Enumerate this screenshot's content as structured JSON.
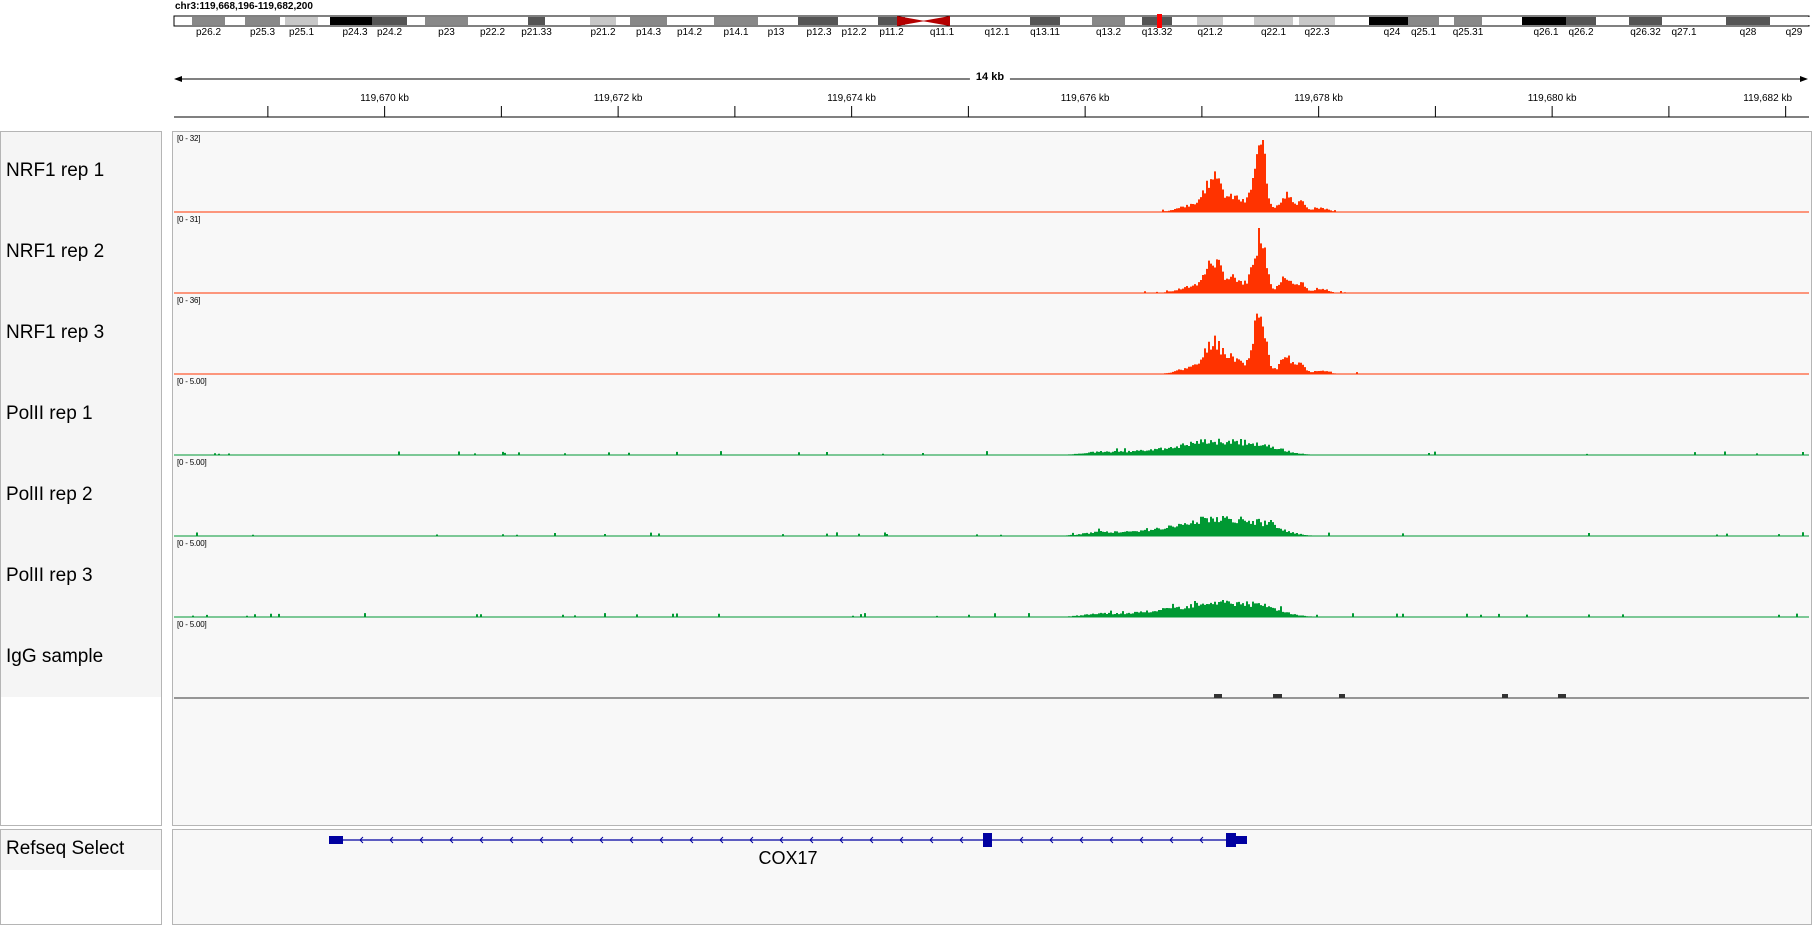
{
  "locus": "chr3:119,668,196-119,682,200",
  "ideogram": {
    "bands": [
      {
        "label": "p26.2",
        "x": 200,
        "x2": 215,
        "color": "#888888"
      },
      {
        "label": "p25.3",
        "x": 253,
        "x2": 270,
        "color": "#888888"
      },
      {
        "label": "p25.1",
        "x": 293,
        "x2": 308,
        "color": "#c8c8c8"
      },
      {
        "label": "p24.3",
        "x": 338,
        "x2": 370,
        "color": "#000000"
      },
      {
        "label": "p24.2",
        "x": 380,
        "x2": 397,
        "color": "#555555"
      },
      {
        "label": "p23",
        "x": 433,
        "x2": 458,
        "color": "#888888"
      },
      {
        "label": "p22.2",
        "x": 486,
        "x2": 497,
        "color": "#ffffff"
      },
      {
        "label": "p21.33",
        "x": 536,
        "x2": 535,
        "color": "#555555"
      },
      {
        "label": "p21.2",
        "x": 598,
        "x2": 606,
        "color": "#c8c8c8"
      },
      {
        "label": "p14.3",
        "x": 638,
        "x2": 657,
        "color": "#888888"
      },
      {
        "label": "p14.2",
        "x": 677,
        "x2": 700,
        "color": "#ffffff"
      },
      {
        "label": "p14.1",
        "x": 722,
        "x2": 748,
        "color": "#888888"
      },
      {
        "label": "p13",
        "x": 766,
        "x2": 784,
        "color": "#ffffff"
      },
      {
        "label": "p12.3",
        "x": 806,
        "x2": 830,
        "color": "#555555"
      },
      {
        "label": "p12.2",
        "x": 846,
        "x2": 860,
        "color": "#ffffff"
      },
      {
        "label": "p11.2",
        "x": 886,
        "x2": 895,
        "color": "#555555"
      },
      {
        "label": "q11.1",
        "x": 934,
        "x2": 948,
        "color": "#ffffff"
      },
      {
        "label": "q12.1",
        "x": 992,
        "x2": 1000,
        "color": "#ffffff"
      },
      {
        "label": "q13.11",
        "x": 1038,
        "x2": 1050,
        "color": "#555555"
      },
      {
        "label": "q13.2",
        "x": 1100,
        "x2": 1115,
        "color": "#888888"
      },
      {
        "label": "q13.32",
        "x": 1150,
        "x2": 1162,
        "color": "#555555"
      },
      {
        "label": "q21.2",
        "x": 1205,
        "x2": 1213,
        "color": "#c8c8c8"
      },
      {
        "label": "q22.1",
        "x": 1262,
        "x2": 1283,
        "color": "#c8c8c8"
      },
      {
        "label": "q22.3",
        "x": 1307,
        "x2": 1325,
        "color": "#c8c8c8"
      },
      {
        "label": "q24",
        "x": 1377,
        "x2": 1405,
        "color": "#000000"
      },
      {
        "label": "q25.1",
        "x": 1416,
        "x2": 1429,
        "color": "#888888"
      },
      {
        "label": "q25.31",
        "x": 1462,
        "x2": 1472,
        "color": "#888888"
      },
      {
        "label": "q26.1",
        "x": 1530,
        "x2": 1560,
        "color": "#000000"
      },
      {
        "label": "q26.2",
        "x": 1574,
        "x2": 1586,
        "color": "#555555"
      },
      {
        "label": "q26.32",
        "x": 1637,
        "x2": 1652,
        "color": "#555555"
      },
      {
        "label": "q27.1",
        "x": 1676,
        "x2": 1690,
        "color": "#ffffff"
      },
      {
        "label": "q28",
        "x": 1734,
        "x2": 1760,
        "color": "#555555"
      },
      {
        "label": "q29",
        "x": 1786,
        "x2": 1800,
        "color": "#ffffff"
      }
    ]
  },
  "ruler": {
    "span_label": "14 kb",
    "ticks": [
      "119,670 kb",
      "119,672 kb",
      "119,674 kb",
      "119,676 kb",
      "119,678 kb",
      "119,680 kb",
      "119,682 kb"
    ]
  },
  "tracks": [
    {
      "name": "NRF1 rep 1",
      "range": "[0 - 32]",
      "color": "#ff3300"
    },
    {
      "name": "NRF1 rep 2",
      "range": "[0 - 31]",
      "color": "#ff3300"
    },
    {
      "name": "NRF1 rep 3",
      "range": "[0 - 36]",
      "color": "#ff3300"
    },
    {
      "name": "PolII rep 1",
      "range": "[0 - 5.00]",
      "color": "#009933"
    },
    {
      "name": "PolII rep 2",
      "range": "[0 - 5.00]",
      "color": "#009933"
    },
    {
      "name": "PolII rep 3",
      "range": "[0 - 5.00]",
      "color": "#009933"
    },
    {
      "name": "IgG sample",
      "range": "[0 - 5.00]",
      "color": "#333333"
    }
  ],
  "annotation_track": {
    "name": "Refseq Select",
    "gene": "COX17",
    "color": "#0000a0"
  }
}
